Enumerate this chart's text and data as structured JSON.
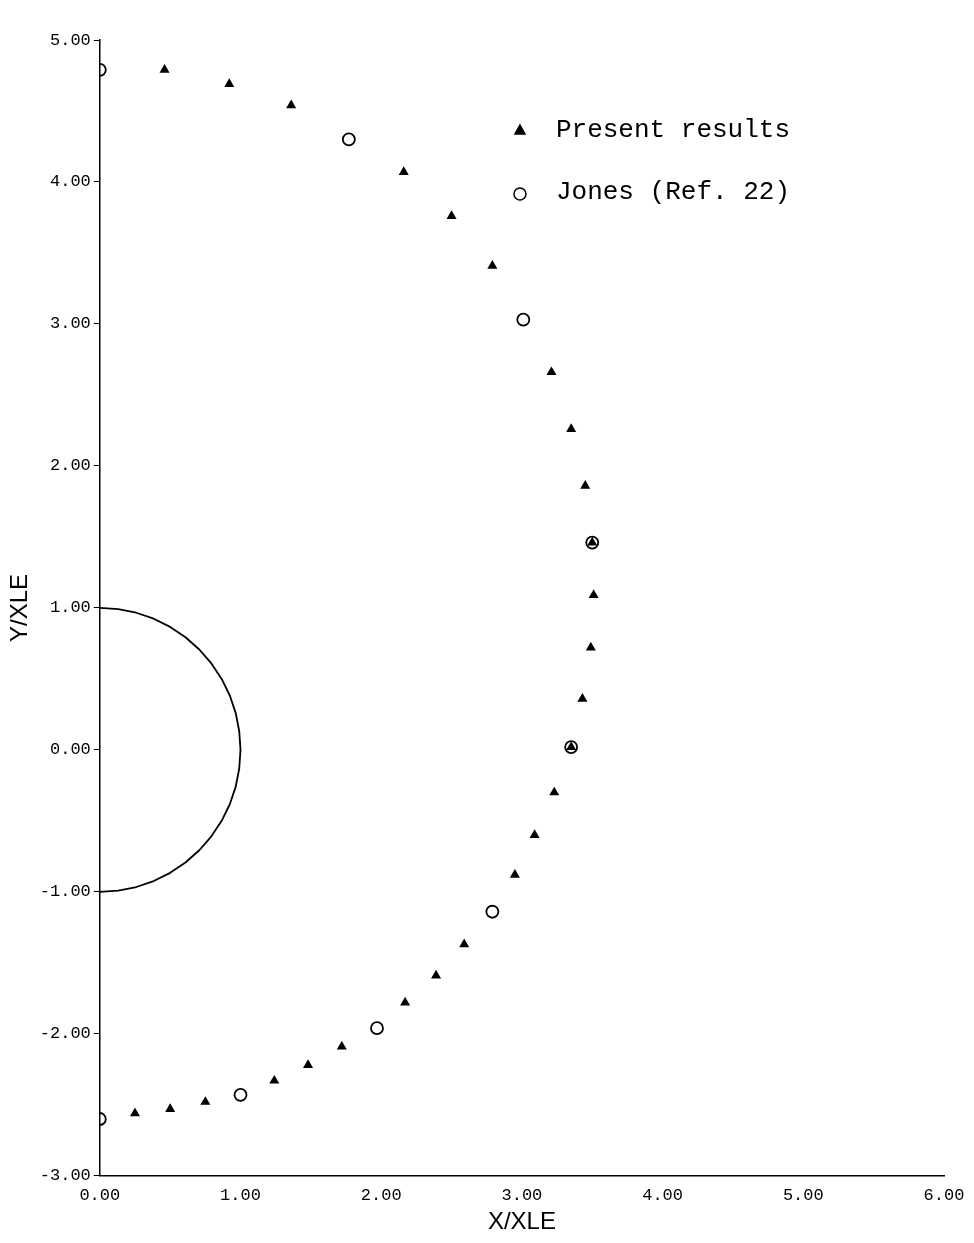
{
  "chart_data": {
    "type": "scatter",
    "xlabel": "X/XLE",
    "ylabel": "Y/XLE",
    "xlim": [
      0,
      6
    ],
    "ylim": [
      -3,
      5
    ],
    "xticks": [
      {
        "value": 0,
        "label": "0.00"
      },
      {
        "value": 1,
        "label": "1.00"
      },
      {
        "value": 2,
        "label": "2.00"
      },
      {
        "value": 3,
        "label": "3.00"
      },
      {
        "value": 4,
        "label": "4.00"
      },
      {
        "value": 5,
        "label": "5.00"
      },
      {
        "value": 6,
        "label": "6.00"
      }
    ],
    "yticks": [
      {
        "value": -3,
        "label": "-3.00"
      },
      {
        "value": -2,
        "label": "-2.00"
      },
      {
        "value": -1,
        "label": "-1.00"
      },
      {
        "value": 0,
        "label": "0.00"
      },
      {
        "value": 1,
        "label": "1.00"
      },
      {
        "value": 2,
        "label": "2.00"
      },
      {
        "value": 3,
        "label": "3.00"
      },
      {
        "value": 4,
        "label": "4.00"
      },
      {
        "value": 5,
        "label": "5.00"
      }
    ],
    "grid": false,
    "legend": "top right",
    "series": [
      {
        "name": "Present results",
        "type": "scatter",
        "marker": "triangle",
        "color": "#000000",
        "x": [
          0.46,
          0.92,
          1.36,
          2.16,
          2.5,
          2.79,
          3.21,
          3.35,
          3.45,
          3.5,
          3.51,
          3.49,
          3.43,
          3.35,
          3.23,
          3.09,
          2.95,
          2.59,
          2.39,
          2.17,
          1.72,
          1.48,
          1.24,
          0.75,
          0.5,
          0.25
        ],
        "values": [
          4.79,
          4.69,
          4.54,
          4.07,
          3.76,
          3.41,
          2.66,
          2.26,
          1.86,
          1.46,
          1.09,
          0.72,
          0.36,
          0.02,
          -0.3,
          -0.6,
          -0.88,
          -1.37,
          -1.59,
          -1.78,
          -2.09,
          -2.22,
          -2.33,
          -2.48,
          -2.53,
          -2.56
        ]
      },
      {
        "name": "Jones (Ref. 22)",
        "type": "scatter",
        "marker": "circle",
        "color": "#000000",
        "x": [
          0,
          1.77,
          3.01,
          3.5,
          3.35,
          2.79,
          1.97,
          1.0,
          0
        ],
        "values": [
          4.79,
          4.3,
          3.03,
          1.46,
          0.02,
          -1.14,
          -1.96,
          -2.43,
          -2.6
        ]
      },
      {
        "type": "line",
        "marker": "none",
        "line_style": "solid",
        "color": "#000000",
        "x": [
          0,
          0.131,
          0.259,
          0.383,
          0.5,
          0.609,
          0.707,
          0.793,
          0.866,
          0.924,
          0.966,
          0.991,
          1.0,
          0.991,
          0.966,
          0.924,
          0.866,
          0.793,
          0.707,
          0.609,
          0.5,
          0.383,
          0.259,
          0.131,
          0
        ],
        "values": [
          1.0,
          0.991,
          0.966,
          0.924,
          0.866,
          0.793,
          0.707,
          0.609,
          0.5,
          0.383,
          0.259,
          0.131,
          0,
          -0.131,
          -0.259,
          -0.383,
          -0.5,
          -0.609,
          -0.707,
          -0.793,
          -0.866,
          -0.924,
          -0.966,
          -0.991,
          -1.0
        ]
      }
    ]
  }
}
